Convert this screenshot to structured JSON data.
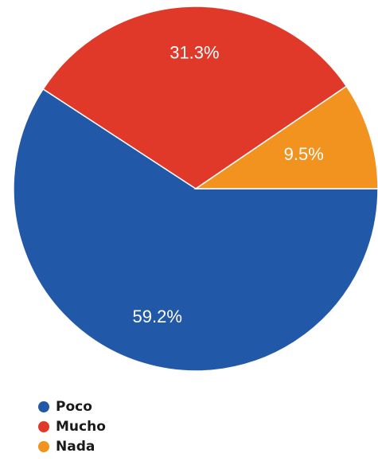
{
  "chart_data": {
    "type": "pie",
    "categories": [
      "Poco",
      "Mucho",
      "Nada"
    ],
    "values": [
      59.2,
      31.3,
      9.5
    ],
    "labels": [
      "59.2%",
      "31.3%",
      "9.5%"
    ],
    "colors": [
      "#2159a8",
      "#e0392a",
      "#f2921f"
    ],
    "legend": {
      "placement": "bottom-left",
      "entries": [
        {
          "label": "Poco",
          "color": "#2159a8"
        },
        {
          "label": "Mucho",
          "color": "#e0392a"
        },
        {
          "label": "Nada",
          "color": "#f2921f"
        }
      ]
    }
  }
}
